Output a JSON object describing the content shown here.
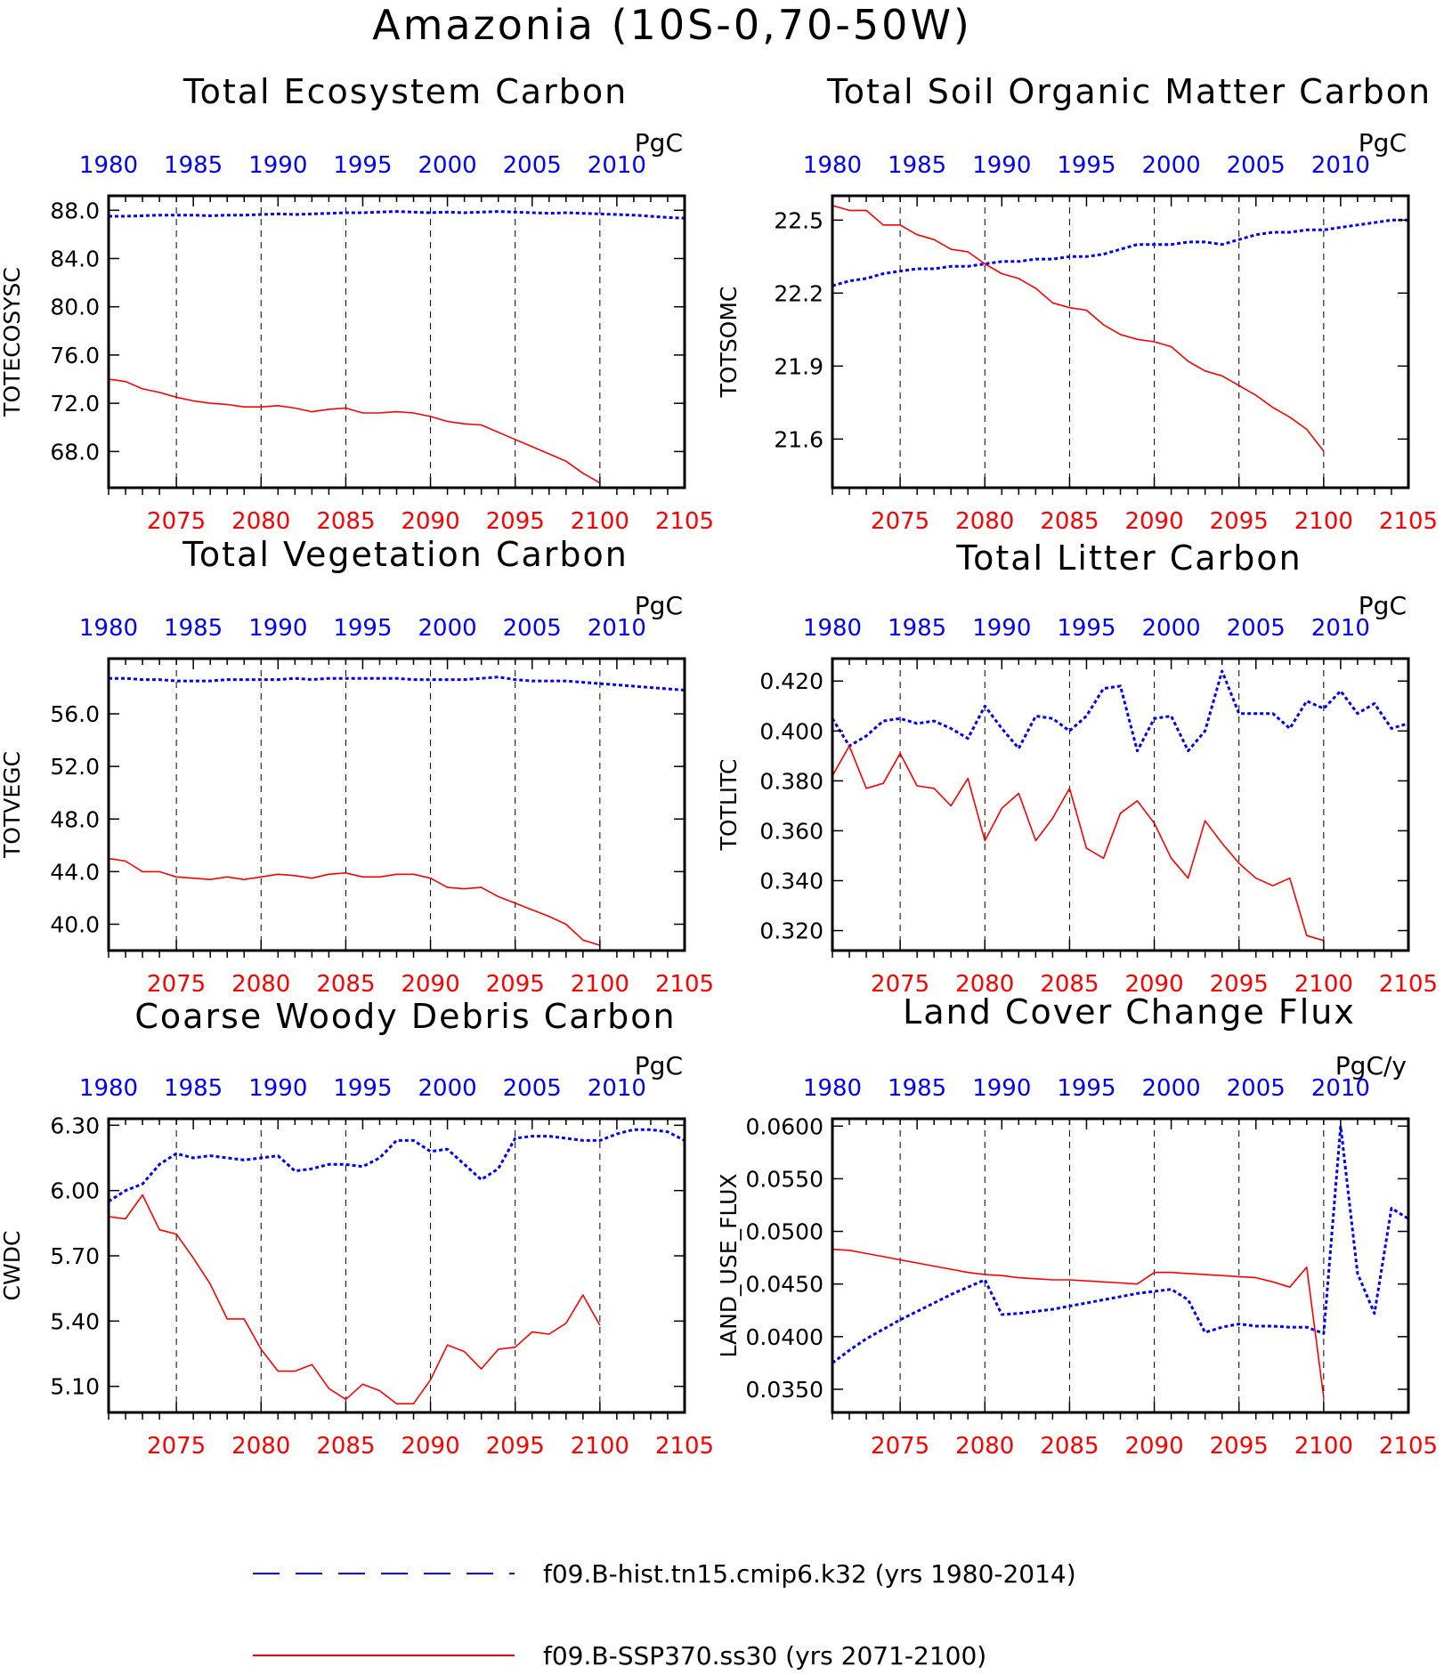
{
  "figure": {
    "title": "Amazonia (10S-0,70-50W)",
    "legend": {
      "placement": "bottom",
      "entries": [
        {
          "label": "f09.B-hist.tn15.cmip6.k32 (yrs 1980-2014)",
          "color": "#0000ff",
          "style": "dashed"
        },
        {
          "label": "f09.B-SSP370.ss30 (yrs 2071-2100)",
          "color": "#ff0000",
          "style": "solid"
        }
      ]
    },
    "colors": {
      "hist": "#0000ff",
      "ssp": "#ff0000",
      "axis": "#000000"
    }
  },
  "chart_data": [
    {
      "type": "line",
      "title": "Total Ecosystem Carbon",
      "units": "PgC",
      "ylabel": "TOTECOSYSC",
      "ylim": [
        65.0,
        89.2
      ],
      "yticks": [
        68.0,
        72.0,
        76.0,
        80.0,
        84.0,
        88.0
      ],
      "ytick_labels": [
        "68.0",
        "72.0",
        "76.0",
        "80.0",
        "84.0",
        "88.0"
      ],
      "x_top": {
        "range": [
          1980,
          2014
        ],
        "ticks": [
          1980,
          1985,
          1990,
          1995,
          2000,
          2005,
          2010
        ],
        "color": "#0000ff"
      },
      "x_bottom": {
        "range": [
          2071,
          2105
        ],
        "ticks": [
          2075,
          2080,
          2085,
          2090,
          2095,
          2100,
          2105
        ],
        "color": "#ff0000"
      },
      "grid": "vertical dashed at bottom-axis ticks",
      "series": [
        {
          "name": "f09.B-hist.tn15.cmip6.k32 (yrs 1980-2014)",
          "axis": "top",
          "x_start": 1980,
          "values": [
            87.5,
            87.5,
            87.55,
            87.6,
            87.6,
            87.6,
            87.55,
            87.6,
            87.6,
            87.65,
            87.7,
            87.65,
            87.7,
            87.75,
            87.8,
            87.8,
            87.85,
            87.9,
            87.85,
            87.8,
            87.85,
            87.8,
            87.85,
            87.9,
            87.85,
            87.8,
            87.75,
            87.8,
            87.75,
            87.7,
            87.65,
            87.6,
            87.5,
            87.4,
            87.35
          ]
        },
        {
          "name": "f09.B-SSP370.ss30 (yrs 2071-2100)",
          "axis": "bottom",
          "x_start": 2071,
          "values": [
            74.0,
            73.8,
            73.2,
            72.9,
            72.5,
            72.2,
            72.0,
            71.9,
            71.7,
            71.7,
            71.8,
            71.6,
            71.3,
            71.5,
            71.6,
            71.2,
            71.2,
            71.3,
            71.2,
            70.9,
            70.5,
            70.3,
            70.2,
            69.6,
            69.0,
            68.4,
            67.8,
            67.2,
            66.2,
            65.4
          ]
        }
      ]
    },
    {
      "type": "line",
      "title": "Total Soil Organic Matter Carbon",
      "units": "PgC",
      "ylabel": "TOTSOMC",
      "ylim": [
        21.4,
        22.6
      ],
      "yticks": [
        21.6,
        21.9,
        22.2,
        22.5
      ],
      "ytick_labels": [
        "21.6",
        "21.9",
        "22.2",
        "22.5"
      ],
      "x_top": {
        "range": [
          1980,
          2014
        ],
        "ticks": [
          1980,
          1985,
          1990,
          1995,
          2000,
          2005,
          2010
        ],
        "color": "#0000ff"
      },
      "x_bottom": {
        "range": [
          2071,
          2105
        ],
        "ticks": [
          2075,
          2080,
          2085,
          2090,
          2095,
          2100,
          2105
        ],
        "color": "#ff0000"
      },
      "grid": "vertical dashed at bottom-axis ticks",
      "series": [
        {
          "name": "f09.B-hist.tn15.cmip6.k32 (yrs 1980-2014)",
          "axis": "top",
          "x_start": 1980,
          "values": [
            22.23,
            22.25,
            22.26,
            22.28,
            22.29,
            22.3,
            22.3,
            22.31,
            22.31,
            22.32,
            22.33,
            22.33,
            22.34,
            22.34,
            22.35,
            22.35,
            22.36,
            22.38,
            22.4,
            22.4,
            22.4,
            22.41,
            22.41,
            22.4,
            22.42,
            22.44,
            22.45,
            22.45,
            22.46,
            22.46,
            22.47,
            22.48,
            22.49,
            22.5,
            22.5
          ]
        },
        {
          "name": "f09.B-SSP370.ss30 (yrs 2071-2100)",
          "axis": "bottom",
          "x_start": 2071,
          "values": [
            22.56,
            22.54,
            22.54,
            22.48,
            22.48,
            22.44,
            22.42,
            22.38,
            22.37,
            22.32,
            22.28,
            22.26,
            22.22,
            22.16,
            22.14,
            22.13,
            22.07,
            22.03,
            22.01,
            22.0,
            21.98,
            21.92,
            21.88,
            21.86,
            21.82,
            21.78,
            21.73,
            21.69,
            21.64,
            21.55
          ]
        }
      ]
    },
    {
      "type": "line",
      "title": "Total Vegetation Carbon",
      "units": "PgC",
      "ylabel": "TOTVEGC",
      "ylim": [
        38.0,
        60.2
      ],
      "yticks": [
        40.0,
        44.0,
        48.0,
        52.0,
        56.0
      ],
      "ytick_labels": [
        "40.0",
        "44.0",
        "48.0",
        "52.0",
        "56.0"
      ],
      "x_top": {
        "range": [
          1980,
          2014
        ],
        "ticks": [
          1980,
          1985,
          1990,
          1995,
          2000,
          2005,
          2010
        ],
        "color": "#0000ff"
      },
      "x_bottom": {
        "range": [
          2071,
          2105
        ],
        "ticks": [
          2075,
          2080,
          2085,
          2090,
          2095,
          2100,
          2105
        ],
        "color": "#ff0000"
      },
      "grid": "vertical dashed at bottom-axis ticks",
      "series": [
        {
          "name": "f09.B-hist.tn15.cmip6.k32 (yrs 1980-2014)",
          "axis": "top",
          "x_start": 1980,
          "values": [
            58.7,
            58.7,
            58.6,
            58.6,
            58.5,
            58.5,
            58.5,
            58.6,
            58.6,
            58.6,
            58.6,
            58.7,
            58.6,
            58.7,
            58.7,
            58.7,
            58.7,
            58.7,
            58.6,
            58.6,
            58.6,
            58.6,
            58.7,
            58.8,
            58.6,
            58.5,
            58.5,
            58.5,
            58.4,
            58.3,
            58.2,
            58.1,
            58.0,
            57.9,
            57.8
          ]
        },
        {
          "name": "f09.B-SSP370.ss30 (yrs 2071-2100)",
          "axis": "bottom",
          "x_start": 2071,
          "values": [
            45.0,
            44.8,
            44.0,
            44.0,
            43.6,
            43.5,
            43.4,
            43.6,
            43.4,
            43.6,
            43.8,
            43.7,
            43.5,
            43.8,
            43.9,
            43.6,
            43.6,
            43.8,
            43.8,
            43.5,
            42.8,
            42.7,
            42.8,
            42.1,
            41.6,
            41.1,
            40.6,
            40.0,
            38.8,
            38.4
          ]
        }
      ]
    },
    {
      "type": "line",
      "title": "Total Litter Carbon",
      "units": "PgC",
      "ylabel": "TOTLITC",
      "ylim": [
        0.312,
        0.429
      ],
      "yticks": [
        0.32,
        0.34,
        0.36,
        0.38,
        0.4,
        0.42
      ],
      "ytick_labels": [
        "0.320",
        "0.340",
        "0.360",
        "0.380",
        "0.400",
        "0.420"
      ],
      "x_top": {
        "range": [
          1980,
          2014
        ],
        "ticks": [
          1980,
          1985,
          1990,
          1995,
          2000,
          2005,
          2010
        ],
        "color": "#0000ff"
      },
      "x_bottom": {
        "range": [
          2071,
          2105
        ],
        "ticks": [
          2075,
          2080,
          2085,
          2090,
          2095,
          2100,
          2105
        ],
        "color": "#ff0000"
      },
      "grid": "vertical dashed at bottom-axis ticks",
      "series": [
        {
          "name": "f09.B-hist.tn15.cmip6.k32 (yrs 1980-2014)",
          "axis": "top",
          "x_start": 1980,
          "values": [
            0.405,
            0.394,
            0.398,
            0.404,
            0.405,
            0.403,
            0.404,
            0.401,
            0.397,
            0.41,
            0.401,
            0.393,
            0.406,
            0.405,
            0.4,
            0.406,
            0.417,
            0.418,
            0.392,
            0.405,
            0.406,
            0.392,
            0.4,
            0.424,
            0.407,
            0.407,
            0.407,
            0.401,
            0.412,
            0.409,
            0.416,
            0.407,
            0.411,
            0.401,
            0.403
          ]
        },
        {
          "name": "f09.B-SSP370.ss30 (yrs 2071-2100)",
          "axis": "bottom",
          "x_start": 2071,
          "values": [
            0.382,
            0.394,
            0.377,
            0.379,
            0.391,
            0.378,
            0.377,
            0.37,
            0.381,
            0.356,
            0.369,
            0.375,
            0.356,
            0.365,
            0.377,
            0.353,
            0.349,
            0.367,
            0.372,
            0.363,
            0.349,
            0.341,
            0.364,
            0.355,
            0.347,
            0.341,
            0.338,
            0.341,
            0.318,
            0.316
          ]
        }
      ]
    },
    {
      "type": "line",
      "title": "Coarse Woody Debris Carbon",
      "units": "PgC",
      "ylabel": "CWDC",
      "ylim": [
        4.98,
        6.33
      ],
      "yticks": [
        5.1,
        5.4,
        5.7,
        6.0,
        6.3
      ],
      "ytick_labels": [
        "5.10",
        "5.40",
        "5.70",
        "6.00",
        "6.30"
      ],
      "x_top": {
        "range": [
          1980,
          2014
        ],
        "ticks": [
          1980,
          1985,
          1990,
          1995,
          2000,
          2005,
          2010
        ],
        "color": "#0000ff"
      },
      "x_bottom": {
        "range": [
          2071,
          2105
        ],
        "ticks": [
          2075,
          2080,
          2085,
          2090,
          2095,
          2100,
          2105
        ],
        "color": "#ff0000"
      },
      "grid": "vertical dashed at bottom-axis ticks",
      "series": [
        {
          "name": "f09.B-hist.tn15.cmip6.k32 (yrs 1980-2014)",
          "axis": "top",
          "x_start": 1980,
          "values": [
            5.95,
            6.0,
            6.03,
            6.12,
            6.17,
            6.15,
            6.16,
            6.15,
            6.14,
            6.15,
            6.16,
            6.09,
            6.1,
            6.12,
            6.12,
            6.11,
            6.15,
            6.23,
            6.23,
            6.18,
            6.19,
            6.12,
            6.05,
            6.1,
            6.24,
            6.25,
            6.25,
            6.24,
            6.23,
            6.23,
            6.26,
            6.28,
            6.28,
            6.27,
            6.23
          ]
        },
        {
          "name": "f09.B-SSP370.ss30 (yrs 2071-2100)",
          "axis": "bottom",
          "x_start": 2071,
          "values": [
            5.88,
            5.87,
            5.98,
            5.82,
            5.8,
            5.69,
            5.57,
            5.41,
            5.41,
            5.27,
            5.17,
            5.17,
            5.2,
            5.09,
            5.04,
            5.11,
            5.08,
            5.02,
            5.02,
            5.13,
            5.29,
            5.26,
            5.18,
            5.27,
            5.28,
            5.35,
            5.34,
            5.39,
            5.52,
            5.38
          ]
        }
      ]
    },
    {
      "type": "line",
      "title": "Land Cover Change Flux",
      "units": "PgC/y",
      "ylabel": "LAND_USE_FLUX",
      "ylim": [
        0.0328,
        0.0607
      ],
      "yticks": [
        0.035,
        0.04,
        0.045,
        0.05,
        0.055,
        0.06
      ],
      "ytick_labels": [
        "0.0350",
        "0.0400",
        "0.0450",
        "0.0500",
        "0.0550",
        "0.0600"
      ],
      "x_top": {
        "range": [
          1980,
          2014
        ],
        "ticks": [
          1980,
          1985,
          1990,
          1995,
          2000,
          2005,
          2010
        ],
        "color": "#0000ff"
      },
      "x_bottom": {
        "range": [
          2071,
          2105
        ],
        "ticks": [
          2075,
          2080,
          2085,
          2090,
          2095,
          2100,
          2105
        ],
        "color": "#ff0000"
      },
      "grid": "vertical dashed at bottom-axis ticks",
      "series": [
        {
          "name": "f09.B-hist.tn15.cmip6.k32 (yrs 1980-2014)",
          "axis": "top",
          "x_start": 1980,
          "values": [
            0.0375,
            0.0387,
            0.0398,
            0.0407,
            0.0416,
            0.0424,
            0.0432,
            0.044,
            0.0447,
            0.0454,
            0.0421,
            0.0422,
            0.0424,
            0.0426,
            0.0429,
            0.0432,
            0.0435,
            0.0438,
            0.0441,
            0.0443,
            0.0445,
            0.0435,
            0.0404,
            0.0409,
            0.0412,
            0.041,
            0.041,
            0.0409,
            0.0409,
            0.0403,
            0.06,
            0.046,
            0.0422,
            0.0522,
            0.0512
          ]
        },
        {
          "name": "f09.B-SSP370.ss30 (yrs 2071-2100)",
          "axis": "bottom",
          "x_start": 2071,
          "values": [
            0.0483,
            0.0482,
            0.0479,
            0.0476,
            0.0473,
            0.047,
            0.0467,
            0.0464,
            0.0461,
            0.0459,
            0.0458,
            0.0456,
            0.0455,
            0.0454,
            0.0454,
            0.0453,
            0.0452,
            0.0451,
            0.045,
            0.0461,
            0.0461,
            0.046,
            0.0459,
            0.0458,
            0.0457,
            0.0456,
            0.0452,
            0.0447,
            0.0466,
            0.0342
          ]
        }
      ]
    }
  ]
}
